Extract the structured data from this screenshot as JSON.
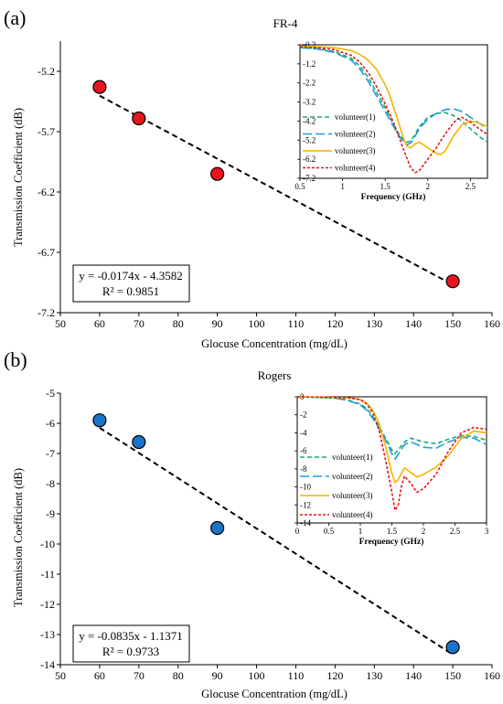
{
  "chart_data": [
    {
      "panel_label": "(a)",
      "type": "scatter",
      "title": "FR-4",
      "xlabel": "Glocuse Concentration (mg/dL)",
      "ylabel": "Transmission Coefficient (dB)",
      "xlim": [
        50,
        160
      ],
      "ylim": [
        -7.2,
        -4.95
      ],
      "xticks": [
        50,
        60,
        70,
        80,
        90,
        100,
        110,
        120,
        130,
        140,
        150,
        160
      ],
      "yticks": [
        -5.2,
        -5.7,
        -6.2,
        -6.7,
        -7.2
      ],
      "point_color": "#e8141b",
      "series": [
        {
          "x": [
            60,
            70,
            90,
            150
          ],
          "y": [
            -5.33,
            -5.59,
            -6.05,
            -6.94
          ]
        }
      ],
      "trendline": {
        "slope": -0.0174,
        "intercept": -4.3582,
        "x_range": [
          60,
          150
        ]
      },
      "equation": [
        "y = -0.0174x - 4.3582",
        "R² = 0.9851"
      ],
      "inset": {
        "type": "line",
        "xlabel": "Frequency (GHz)",
        "xlim": [
          0.5,
          2.7
        ],
        "ylim": [
          -7.2,
          -0.2
        ],
        "xticks": [
          0.5,
          1,
          1.5,
          2,
          2.5
        ],
        "xtick_labels": [
          "0.5",
          "1",
          "1.5",
          "2",
          "2.5"
        ],
        "yticks": [
          -0.2,
          -1.2,
          -2.2,
          -3.2,
          -4.2,
          -5.2,
          -6.2,
          -7.2
        ],
        "ytick_labels": [
          "-0.2",
          "-1.2",
          "-2.2",
          "-3.2",
          "-4.2",
          "-5.2",
          "-6.2",
          "-7.2"
        ],
        "legend_position": "left",
        "series": [
          {
            "name": "volunteer(1)",
            "color": "#1daa6e",
            "dash": "5,3",
            "x": [
              0.5,
              0.7,
              0.9,
              1.1,
              1.2,
              1.3,
              1.4,
              1.5,
              1.6,
              1.65,
              1.7,
              1.75,
              1.8,
              1.85,
              1.9,
              2.0,
              2.1,
              2.2,
              2.3,
              2.4,
              2.5,
              2.6,
              2.7
            ],
            "y": [
              -0.35,
              -0.4,
              -0.55,
              -0.9,
              -1.3,
              -1.9,
              -2.7,
              -3.5,
              -4.4,
              -4.8,
              -5.1,
              -5.3,
              -5.25,
              -4.9,
              -4.5,
              -4.0,
              -3.8,
              -3.75,
              -3.9,
              -4.2,
              -4.6,
              -5.0,
              -5.3
            ]
          },
          {
            "name": "volunteer(2)",
            "color": "#1e9ddb",
            "dash": "10,4",
            "x": [
              0.5,
              0.7,
              0.9,
              1.1,
              1.2,
              1.3,
              1.4,
              1.5,
              1.6,
              1.65,
              1.7,
              1.75,
              1.8,
              1.85,
              1.9,
              2.0,
              2.1,
              2.2,
              2.3,
              2.4,
              2.5,
              2.6,
              2.7
            ],
            "y": [
              -0.35,
              -0.42,
              -0.6,
              -1.0,
              -1.45,
              -2.1,
              -2.9,
              -3.7,
              -4.5,
              -4.9,
              -5.2,
              -5.45,
              -5.35,
              -5.0,
              -4.6,
              -4.1,
              -3.8,
              -3.6,
              -3.55,
              -3.7,
              -4.0,
              -4.3,
              -4.6
            ]
          },
          {
            "name": "volunteer(3)",
            "color": "#f4b400",
            "dash": "",
            "x": [
              0.5,
              0.7,
              0.9,
              1.1,
              1.2,
              1.3,
              1.4,
              1.5,
              1.55,
              1.6,
              1.65,
              1.7,
              1.75,
              1.8,
              1.85,
              1.9,
              1.95,
              2.0,
              2.1,
              2.15,
              2.2,
              2.3,
              2.4,
              2.5,
              2.6,
              2.7
            ],
            "y": [
              -0.3,
              -0.3,
              -0.35,
              -0.5,
              -0.7,
              -1.0,
              -1.5,
              -2.3,
              -2.8,
              -3.5,
              -4.2,
              -4.9,
              -5.5,
              -5.6,
              -5.4,
              -5.3,
              -5.45,
              -5.6,
              -5.9,
              -5.95,
              -5.8,
              -5.0,
              -4.4,
              -4.2,
              -4.3,
              -4.5
            ]
          },
          {
            "name": "volunteer(4)",
            "color": "#e8141b",
            "dash": "3,2",
            "x": [
              0.5,
              0.7,
              0.9,
              1.1,
              1.2,
              1.3,
              1.4,
              1.5,
              1.6,
              1.65,
              1.7,
              1.75,
              1.8,
              1.85,
              1.9,
              1.95,
              2.0,
              2.1,
              2.2,
              2.3,
              2.35,
              2.4,
              2.5,
              2.6,
              2.7
            ],
            "y": [
              -0.3,
              -0.35,
              -0.45,
              -0.75,
              -1.1,
              -1.65,
              -2.4,
              -3.3,
              -4.3,
              -4.9,
              -5.5,
              -6.1,
              -6.65,
              -6.9,
              -6.8,
              -6.5,
              -6.2,
              -5.6,
              -4.9,
              -4.3,
              -4.1,
              -4.0,
              -4.25,
              -4.6,
              -4.9
            ]
          }
        ]
      }
    },
    {
      "panel_label": "(b)",
      "type": "scatter",
      "title": "Rogers",
      "xlabel": "Glocuse Concentration (mg/dL)",
      "ylabel": "Transmission Coefficient (dB)",
      "xlim": [
        50,
        160
      ],
      "ylim": [
        -14,
        -5
      ],
      "xticks": [
        50,
        60,
        70,
        80,
        90,
        100,
        110,
        120,
        130,
        140,
        150,
        160
      ],
      "yticks": [
        -5,
        -6,
        -7,
        -8,
        -9,
        -10,
        -11,
        -12,
        -13,
        -14
      ],
      "point_color": "#1b74c8",
      "series": [
        {
          "x": [
            60,
            70,
            90,
            150
          ],
          "y": [
            -5.9,
            -6.62,
            -9.47,
            -13.42
          ]
        }
      ],
      "trendline": {
        "slope": -0.0835,
        "intercept": -1.1371,
        "x_range": [
          60,
          150
        ]
      },
      "equation": [
        "y = -0.0835x - 1.1371",
        "R² = 0.9733"
      ],
      "inset": {
        "type": "line",
        "xlabel": "Frequency (GHz)",
        "xlim": [
          0,
          3
        ],
        "ylim": [
          -14,
          0
        ],
        "xticks": [
          0,
          0.5,
          1,
          1.5,
          2,
          2.5,
          3
        ],
        "xtick_labels": [
          "0",
          "0.5",
          "1",
          "1.5",
          "2",
          "2.5",
          "3"
        ],
        "yticks": [
          0,
          -2,
          -4,
          -6,
          -8,
          -10,
          -12,
          -14
        ],
        "ytick_labels": [
          "0",
          "-2",
          "-4",
          "-6",
          "-8",
          "-10",
          "-12",
          "-14"
        ],
        "legend_position": "left",
        "series": [
          {
            "name": "volunteer(1)",
            "color": "#1daa6e",
            "dash": "5,3",
            "x": [
              0,
              0.3,
              0.6,
              0.8,
              1.0,
              1.1,
              1.2,
              1.3,
              1.4,
              1.5,
              1.55,
              1.6,
              1.7,
              1.8,
              1.9,
              2.0,
              2.2,
              2.4,
              2.6,
              2.8,
              3.0
            ],
            "y": [
              0,
              -0.05,
              -0.15,
              -0.35,
              -0.8,
              -1.3,
              -2.2,
              -3.3,
              -4.6,
              -5.9,
              -6.3,
              -5.9,
              -5.0,
              -4.6,
              -4.8,
              -5.0,
              -5.2,
              -4.7,
              -4.3,
              -4.4,
              -4.8
            ]
          },
          {
            "name": "volunteer(2)",
            "color": "#1e9ddb",
            "dash": "10,4",
            "x": [
              0,
              0.3,
              0.6,
              0.8,
              1.0,
              1.1,
              1.2,
              1.3,
              1.4,
              1.5,
              1.55,
              1.6,
              1.7,
              1.8,
              1.9,
              2.0,
              2.2,
              2.4,
              2.6,
              2.8,
              3.0
            ],
            "y": [
              0,
              -0.05,
              -0.15,
              -0.4,
              -0.9,
              -1.5,
              -2.4,
              -3.5,
              -4.8,
              -6.3,
              -6.9,
              -6.4,
              -5.3,
              -5.0,
              -5.3,
              -5.6,
              -5.7,
              -5.0,
              -4.5,
              -4.6,
              -5.3
            ]
          },
          {
            "name": "volunteer(3)",
            "color": "#f4b400",
            "dash": "",
            "x": [
              0,
              0.4,
              0.8,
              1.0,
              1.1,
              1.2,
              1.3,
              1.4,
              1.5,
              1.55,
              1.6,
              1.65,
              1.7,
              1.8,
              1.9,
              2.0,
              2.2,
              2.4,
              2.6,
              2.8,
              3.0
            ],
            "y": [
              0,
              -0.05,
              -0.1,
              -0.3,
              -0.7,
              -1.5,
              -3.0,
              -5.5,
              -8.5,
              -9.5,
              -9.2,
              -8.5,
              -7.9,
              -8.4,
              -8.9,
              -8.6,
              -7.8,
              -6.5,
              -4.6,
              -3.8,
              -4.0
            ]
          },
          {
            "name": "volunteer(4)",
            "color": "#e8141b",
            "dash": "3,2",
            "x": [
              0,
              0.4,
              0.8,
              1.0,
              1.1,
              1.2,
              1.3,
              1.4,
              1.5,
              1.55,
              1.6,
              1.65,
              1.7,
              1.8,
              1.9,
              2.0,
              2.2,
              2.4,
              2.6,
              2.8,
              3.0
            ],
            "y": [
              0,
              -0.05,
              -0.1,
              -0.3,
              -0.8,
              -1.8,
              -3.8,
              -7.0,
              -10.6,
              -12.6,
              -12.0,
              -10.0,
              -8.8,
              -9.6,
              -10.6,
              -10.2,
              -8.6,
              -6.0,
              -4.0,
              -3.4,
              -3.6
            ]
          }
        ]
      }
    }
  ]
}
